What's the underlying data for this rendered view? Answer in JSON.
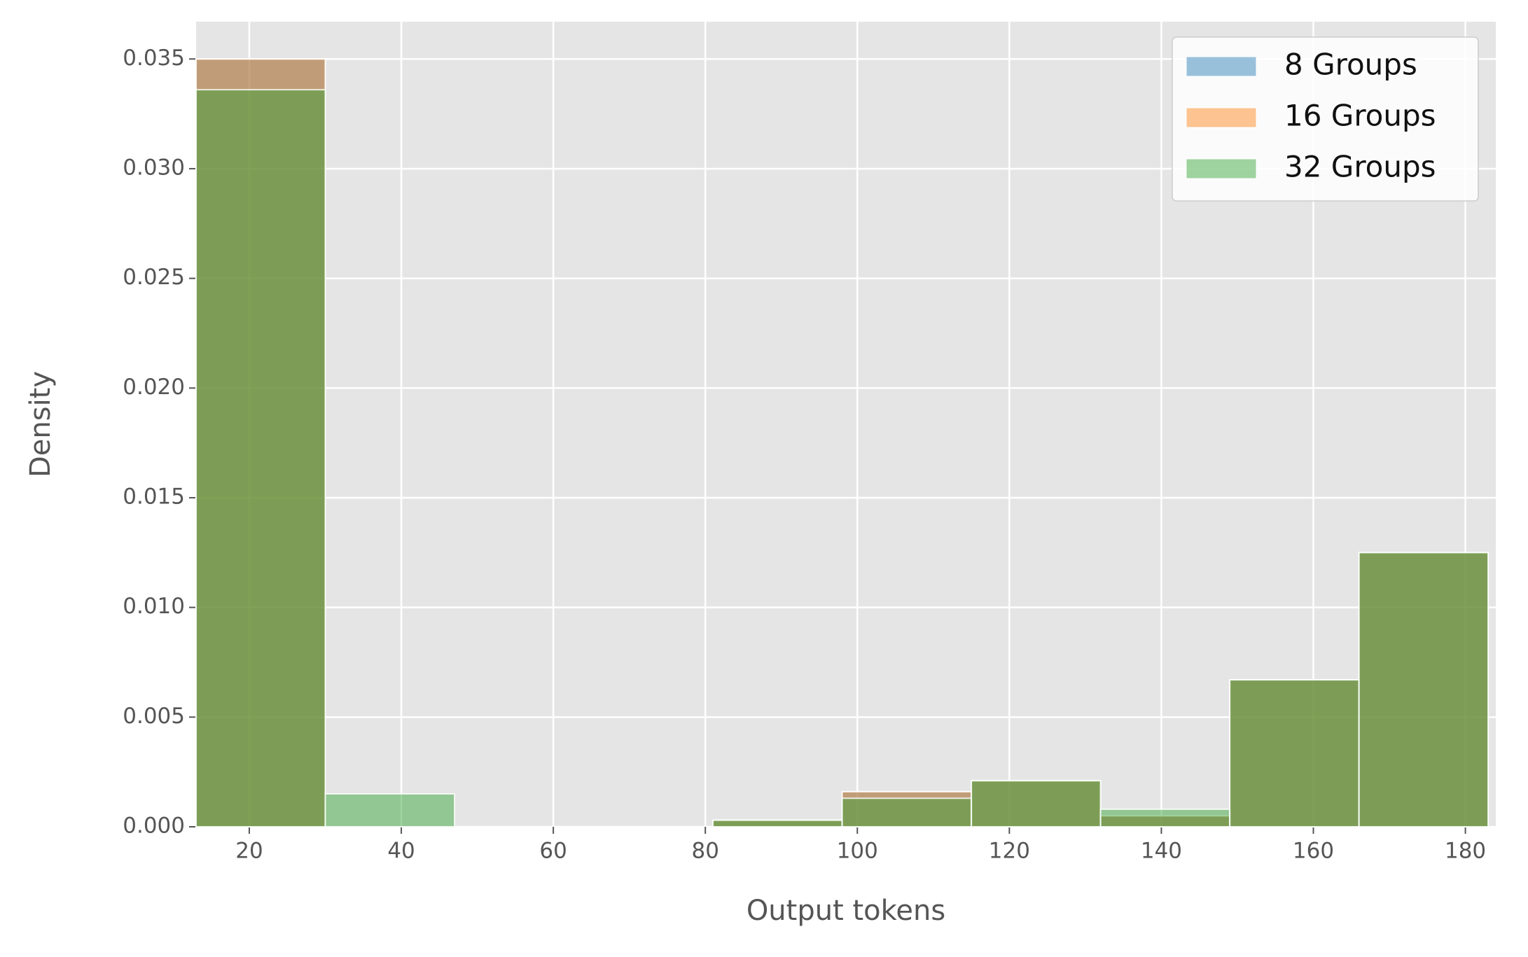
{
  "chart_data": {
    "type": "histogram",
    "xlabel": "Output tokens",
    "ylabel": "Density",
    "bins": [
      13,
      30,
      47,
      64,
      81,
      98,
      115,
      132,
      149,
      166,
      183
    ],
    "series": [
      {
        "name": "8 Groups",
        "color": "#1f77b4",
        "values": [
          0.035,
          0,
          0,
          0,
          0.0003,
          0.0016,
          0.0021,
          0.0005,
          0.0067,
          0.0125
        ]
      },
      {
        "name": "16 Groups",
        "color": "#ff7f0e",
        "values": [
          0.035,
          0,
          0,
          0,
          0.0003,
          0.0016,
          0.0021,
          0.0005,
          0.0067,
          0.0125
        ]
      },
      {
        "name": "32 Groups",
        "color": "#2ca02c",
        "values": [
          0.0336,
          0.0015,
          0,
          0,
          0.0003,
          0.0013,
          0.0021,
          0.0008,
          0.0067,
          0.0125
        ]
      }
    ],
    "alpha": 0.45,
    "xlim": [
      13,
      184
    ],
    "ylim": [
      0,
      0.0367
    ],
    "xticks": [
      20,
      40,
      60,
      80,
      100,
      120,
      140,
      160,
      180
    ],
    "yticks": [
      {
        "value": 0,
        "label": "0.000"
      },
      {
        "value": 0.005,
        "label": "0.005"
      },
      {
        "value": 0.01,
        "label": "0.010"
      },
      {
        "value": 0.015,
        "label": "0.015"
      },
      {
        "value": 0.02,
        "label": "0.020"
      },
      {
        "value": 0.025,
        "label": "0.025"
      },
      {
        "value": 0.03,
        "label": "0.030"
      },
      {
        "value": 0.035,
        "label": "0.035"
      }
    ],
    "grid": true,
    "legend": "upper right"
  }
}
